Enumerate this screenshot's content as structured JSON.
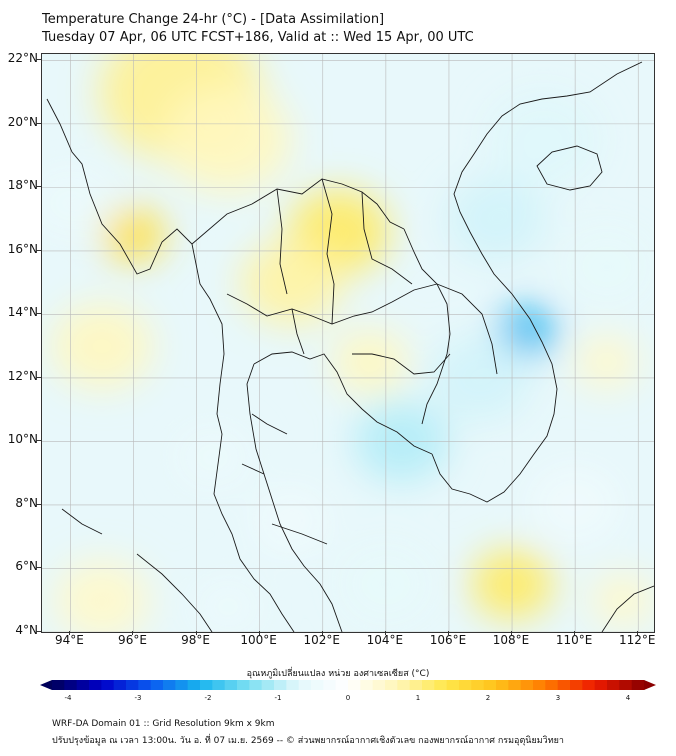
{
  "header": {
    "title_line1": "Temperature Change 24-hr (°C) - [Data Assimilation]",
    "title_line2": "Tuesday 07 Apr, 06 UTC FCST+186, Valid at :: Wed 15 Apr, 00 UTC"
  },
  "map": {
    "lat_labels": [
      "22°N",
      "20°N",
      "18°N",
      "16°N",
      "14°N",
      "12°N",
      "10°N",
      "8°N",
      "6°N",
      "4°N"
    ],
    "lon_labels": [
      "94°E",
      "96°E",
      "98°E",
      "100°E",
      "102°E",
      "104°E",
      "106°E",
      "108°E",
      "110°E",
      "112°E"
    ],
    "lat_values": [
      22,
      20,
      18,
      16,
      14,
      12,
      10,
      8,
      6,
      4
    ],
    "lon_values": [
      94,
      96,
      98,
      100,
      102,
      104,
      106,
      108,
      110,
      112
    ],
    "lat_range": [
      4,
      22.2
    ],
    "lon_range": [
      93.1,
      112.5
    ],
    "field_blobs": [
      {
        "lon": 97.5,
        "lat": 21.0,
        "value": 0.9,
        "spread": 2.6
      },
      {
        "lon": 99.0,
        "lat": 19.5,
        "value": 0.6,
        "spread": 2.0
      },
      {
        "lon": 96.0,
        "lat": 16.5,
        "value": 1.5,
        "spread": 1.0
      },
      {
        "lon": 102.5,
        "lat": 16.6,
        "value": 1.2,
        "spread": 1.6
      },
      {
        "lon": 101.0,
        "lat": 15.0,
        "value": 0.8,
        "spread": 1.6
      },
      {
        "lon": 95.0,
        "lat": 13.0,
        "value": 0.6,
        "spread": 1.6
      },
      {
        "lon": 103.5,
        "lat": 12.5,
        "value": 0.6,
        "spread": 1.2
      },
      {
        "lon": 108.0,
        "lat": 5.5,
        "value": 1.2,
        "spread": 1.3
      },
      {
        "lon": 95.0,
        "lat": 5.0,
        "value": 0.5,
        "spread": 1.5
      },
      {
        "lon": 111.0,
        "lat": 12.5,
        "value": 0.5,
        "spread": 1.0
      },
      {
        "lon": 111.5,
        "lat": 5.0,
        "value": 0.5,
        "spread": 1.0
      },
      {
        "lon": 108.5,
        "lat": 13.5,
        "value": -2.0,
        "spread": 0.9
      },
      {
        "lon": 107.0,
        "lat": 12.0,
        "value": -0.8,
        "spread": 1.6
      },
      {
        "lon": 104.5,
        "lat": 10.0,
        "value": -1.0,
        "spread": 1.5
      },
      {
        "lon": 107.5,
        "lat": 17.0,
        "value": -0.8,
        "spread": 1.6
      },
      {
        "lon": 109.0,
        "lat": 19.5,
        "value": -0.7,
        "spread": 1.8
      },
      {
        "lon": 111.0,
        "lat": 15.5,
        "value": -0.6,
        "spread": 1.5
      },
      {
        "lon": 94.0,
        "lat": 17.5,
        "value": -0.5,
        "spread": 1.4
      },
      {
        "lon": 98.5,
        "lat": 9.5,
        "value": -0.5,
        "spread": 1.3
      },
      {
        "lon": 101.0,
        "lat": 7.5,
        "value": -0.4,
        "spread": 1.2
      },
      {
        "lon": 104.0,
        "lat": 5.5,
        "value": -0.6,
        "spread": 1.5
      },
      {
        "lon": 99.0,
        "lat": 4.8,
        "value": -0.5,
        "spread": 1.2
      },
      {
        "lon": 110.0,
        "lat": 8.0,
        "value": -0.4,
        "spread": 1.4
      }
    ]
  },
  "colorbar": {
    "title": "อุณหภูมิเปลี่ยนแปลง หน่วย องศาเซลเซียส (°C)",
    "ticks": [
      "-4",
      "-3",
      "-2",
      "-1",
      "0",
      "1",
      "2",
      "3",
      "4"
    ],
    "range": [
      -4,
      4
    ],
    "colors": [
      "#00005a",
      "#0000c8",
      "#0a5af0",
      "#19b4ee",
      "#7ee0f2",
      "#e4f8fb",
      "#ffffff",
      "#fff6b8",
      "#ffe74a",
      "#ffc21a",
      "#ff7a00",
      "#ee1b00",
      "#8a0000"
    ]
  },
  "footer": {
    "line1": "WRF-DA Domain 01 :: Grid Resolution 9km x 9km",
    "line2": "ปรับปรุงข้อมูล ณ เวลา 13:00น. วัน อ. ที่ 07 เม.ย. 2569 -- © ส่วนพยากรณ์อากาศเชิงตัวเลข กองพยากรณ์อากาศ กรมอุตุนิยมวิทยา"
  }
}
